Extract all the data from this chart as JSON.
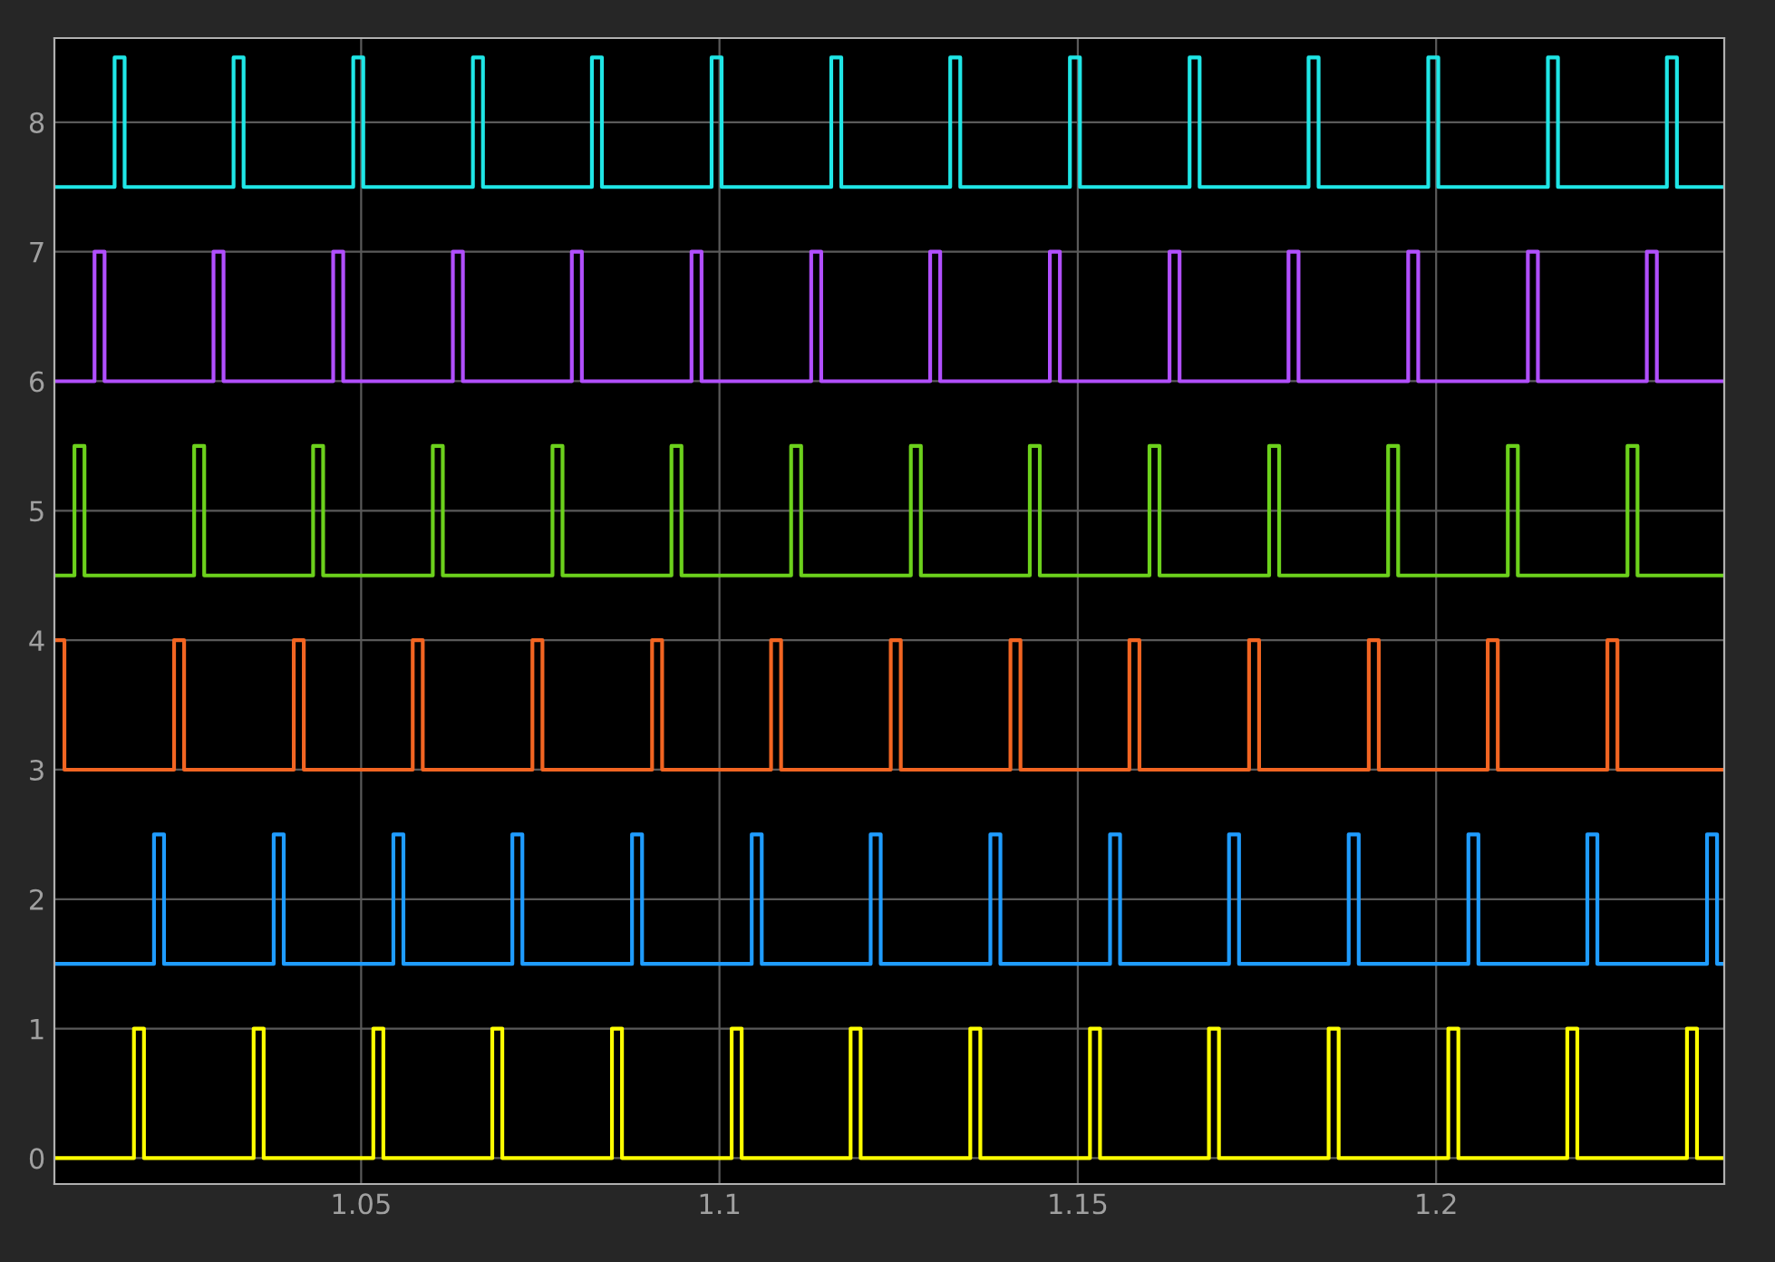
{
  "chart_data": {
    "type": "step",
    "xlim": [
      1.0072,
      1.2402
    ],
    "ylim": [
      -0.2,
      8.65
    ],
    "xticks": [
      1.05,
      1.1,
      1.15,
      1.2
    ],
    "yticks": [
      0,
      1,
      2,
      3,
      4,
      5,
      6,
      7,
      8
    ],
    "grid": true,
    "legend": false,
    "series": [
      {
        "color": "#ffff00",
        "x": [
          1.0072,
          1.0183,
          1.0197,
          1.035,
          1.0364,
          1.0517,
          1.0531,
          1.0683,
          1.0697,
          1.085,
          1.0864,
          1.1017,
          1.1031,
          1.1183,
          1.1197,
          1.135,
          1.1364,
          1.1517,
          1.1531,
          1.1683,
          1.1697,
          1.185,
          1.1864,
          1.2017,
          1.2031,
          1.2183,
          1.2197,
          1.235,
          1.2364,
          1.2402
        ],
        "values": [
          0,
          1,
          0,
          1,
          0,
          1,
          0,
          1,
          0,
          1,
          0,
          1,
          0,
          1,
          0,
          1,
          0,
          1,
          0,
          1,
          0,
          1,
          0,
          1,
          0,
          1,
          0,
          1,
          0,
          0
        ]
      },
      {
        "color": "#1f9cff",
        "x": [
          1.0072,
          1.0211,
          1.0225,
          1.0378,
          1.0392,
          1.0545,
          1.0559,
          1.0711,
          1.0725,
          1.0878,
          1.0892,
          1.1045,
          1.1059,
          1.1211,
          1.1225,
          1.1378,
          1.1392,
          1.1545,
          1.1559,
          1.1711,
          1.1725,
          1.1878,
          1.1892,
          1.2045,
          1.2059,
          1.2211,
          1.2225,
          1.2378,
          1.2392,
          1.2402
        ],
        "values": [
          1.5,
          2.5,
          1.5,
          2.5,
          1.5,
          2.5,
          1.5,
          2.5,
          1.5,
          2.5,
          1.5,
          2.5,
          1.5,
          2.5,
          1.5,
          2.5,
          1.5,
          2.5,
          1.5,
          2.5,
          1.5,
          2.5,
          1.5,
          2.5,
          1.5,
          2.5,
          1.5,
          2.5,
          1.5,
          1.5
        ]
      },
      {
        "color": "#f26522",
        "x": [
          1.0072,
          1.0086,
          1.0239,
          1.0253,
          1.0406,
          1.042,
          1.0572,
          1.0586,
          1.0739,
          1.0753,
          1.0906,
          1.092,
          1.1072,
          1.1086,
          1.1239,
          1.1253,
          1.1406,
          1.142,
          1.1572,
          1.1586,
          1.1739,
          1.1753,
          1.1906,
          1.192,
          1.2072,
          1.2086,
          1.2239,
          1.2253,
          1.2402
        ],
        "values": [
          4,
          3,
          4,
          3,
          4,
          3,
          4,
          3,
          4,
          3,
          4,
          3,
          4,
          3,
          4,
          3,
          4,
          3,
          4,
          3,
          4,
          3,
          4,
          3,
          4,
          3,
          4,
          3,
          3
        ]
      },
      {
        "color": "#6cd11c",
        "x": [
          1.0072,
          1.01,
          1.0114,
          1.0267,
          1.0281,
          1.0433,
          1.0447,
          1.06,
          1.0614,
          1.0767,
          1.0781,
          1.0933,
          1.0947,
          1.11,
          1.1114,
          1.1267,
          1.1281,
          1.1433,
          1.1447,
          1.16,
          1.1614,
          1.1767,
          1.1781,
          1.1933,
          1.1947,
          1.21,
          1.2114,
          1.2267,
          1.2281,
          1.2402
        ],
        "values": [
          4.5,
          5.5,
          4.5,
          5.5,
          4.5,
          5.5,
          4.5,
          5.5,
          4.5,
          5.5,
          4.5,
          5.5,
          4.5,
          5.5,
          4.5,
          5.5,
          4.5,
          5.5,
          4.5,
          5.5,
          4.5,
          5.5,
          4.5,
          5.5,
          4.5,
          5.5,
          4.5,
          5.5,
          4.5,
          4.5
        ]
      },
      {
        "color": "#b14fff",
        "x": [
          1.0072,
          1.0128,
          1.0142,
          1.0294,
          1.0308,
          1.0461,
          1.0475,
          1.0628,
          1.0642,
          1.0794,
          1.0808,
          1.0961,
          1.0975,
          1.1128,
          1.1142,
          1.1294,
          1.1308,
          1.1461,
          1.1475,
          1.1628,
          1.1642,
          1.1794,
          1.1808,
          1.1961,
          1.1975,
          1.2128,
          1.2142,
          1.2294,
          1.2308,
          1.2402
        ],
        "values": [
          6,
          7,
          6,
          7,
          6,
          7,
          6,
          7,
          6,
          7,
          6,
          7,
          6,
          7,
          6,
          7,
          6,
          7,
          6,
          7,
          6,
          7,
          6,
          7,
          6,
          7,
          6,
          7,
          6,
          6
        ]
      },
      {
        "color": "#1fe6e6",
        "x": [
          1.0072,
          1.0156,
          1.017,
          1.0322,
          1.0336,
          1.0489,
          1.0503,
          1.0656,
          1.067,
          1.0822,
          1.0836,
          1.0989,
          1.1003,
          1.1156,
          1.117,
          1.1322,
          1.1336,
          1.1489,
          1.1503,
          1.1656,
          1.167,
          1.1822,
          1.1836,
          1.1989,
          1.2003,
          1.2156,
          1.217,
          1.2322,
          1.2336,
          1.2402
        ],
        "values": [
          7.5,
          8.5,
          7.5,
          8.5,
          7.5,
          8.5,
          7.5,
          8.5,
          7.5,
          8.5,
          7.5,
          8.5,
          7.5,
          8.5,
          7.5,
          8.5,
          7.5,
          8.5,
          7.5,
          8.5,
          7.5,
          8.5,
          7.5,
          8.5,
          7.5,
          8.5,
          7.5,
          8.5,
          7.5,
          7.5
        ]
      }
    ]
  }
}
